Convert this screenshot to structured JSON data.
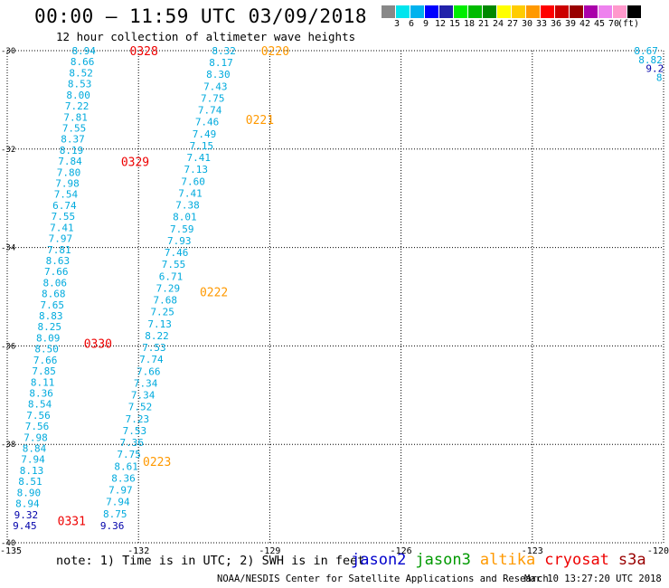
{
  "header": {
    "title": "00:00 – 11:59 UTC 03/09/2018",
    "subtitle": "12 hour collection of altimeter wave heights"
  },
  "colorbar": {
    "colors": [
      "#888888",
      "#00e5ee",
      "#00b2ee",
      "#0000ff",
      "#2222aa",
      "#00ee00",
      "#00bb00",
      "#008800",
      "#ffff00",
      "#ffcc00",
      "#ff9900",
      "#ff0000",
      "#cc0000",
      "#990000",
      "#aa00aa",
      "#ee82ee",
      "#ff99cc",
      "#000000"
    ],
    "labels": [
      "3",
      "6",
      "9",
      "12",
      "15",
      "18",
      "21",
      "24",
      "27",
      "30",
      "33",
      "36",
      "39",
      "42",
      "45",
      "70",
      "(ft)"
    ]
  },
  "map": {
    "lon_range": [
      -135,
      -120
    ],
    "lat_range": [
      -40,
      -30
    ],
    "lon_ticks": [
      -135,
      -132,
      -129,
      -126,
      -123,
      -120
    ],
    "lat_ticks": [
      -30,
      -32,
      -34,
      -36,
      -38,
      -40
    ],
    "colors": {
      "cyan": "#00aadd",
      "navy": "#0000aa",
      "red": "#ee0000",
      "orange": "#ff9900"
    },
    "tracks": [
      {
        "name": "track-1",
        "lon_start": -133.25,
        "lat_start": -30.0,
        "lon_end": -134.6,
        "lat_end": -39.65,
        "values": [
          "8.94",
          "8.66",
          "8.52",
          "8.53",
          "8.00",
          "7.22",
          "7.81",
          "7.55",
          "8.37",
          "8.19",
          "7.84",
          "7.80",
          "7.98",
          "7.54",
          "6.74",
          "7.55",
          "7.41",
          "7.97",
          "7.81",
          "8.63",
          "7.66",
          "8.06",
          "8.68",
          "7.65",
          "8.83",
          "8.25",
          "8.09",
          "8.50",
          "7.66",
          "7.85",
          "8.11",
          "8.36",
          "8.54",
          "7.56",
          "7.56",
          "7.98",
          "8.84",
          "7.94",
          "8.13",
          "8.51",
          "8.90",
          "8.94",
          "9.32",
          "9.45"
        ],
        "navy_values": [
          "9.32",
          "9.45"
        ]
      },
      {
        "name": "track-2",
        "lon_start": -130.05,
        "lat_start": -30.0,
        "lon_end": -132.6,
        "lat_end": -39.65,
        "values": [
          "8.32",
          "8.17",
          "8.30",
          "7.43",
          "7.75",
          "7.74",
          "7.46",
          "7.49",
          "7.15",
          "7.41",
          "7.13",
          "7.60",
          "7.41",
          "7.38",
          "8.01",
          "7.59",
          "7.93",
          "7.46",
          "7.55",
          "6.71",
          "7.29",
          "7.68",
          "7.25",
          "7.13",
          "8.22",
          "7.53",
          "7.74",
          "7.66",
          "7.34",
          "7.34",
          "7.52",
          "7.23",
          "7.53",
          "7.36",
          "7.75",
          "8.61",
          "8.36",
          "7.97",
          "7.94",
          "8.75",
          "9.36"
        ],
        "navy_values": [
          "9.36"
        ]
      },
      {
        "name": "track-3",
        "lon_start": -120.4,
        "lat_start": -30.0,
        "lon_end": -120.1,
        "lat_end": -30.6,
        "values": [
          "8.67",
          "8.82",
          "9.2",
          "8"
        ],
        "navy_values": [
          "9.2"
        ]
      }
    ],
    "time_labels": [
      {
        "text": "0328",
        "lon": -132.2,
        "lat": -30.0,
        "color": "red"
      },
      {
        "text": "0329",
        "lon": -132.4,
        "lat": -32.25,
        "color": "red"
      },
      {
        "text": "0330",
        "lon": -133.25,
        "lat": -35.95,
        "color": "red"
      },
      {
        "text": "0331",
        "lon": -133.85,
        "lat": -39.55,
        "color": "red"
      },
      {
        "text": "0220",
        "lon": -129.2,
        "lat": -30.0,
        "color": "orange"
      },
      {
        "text": "0221",
        "lon": -129.55,
        "lat": -31.4,
        "color": "orange"
      },
      {
        "text": "0222",
        "lon": -130.6,
        "lat": -34.9,
        "color": "orange"
      },
      {
        "text": "0223",
        "lon": -131.9,
        "lat": -38.35,
        "color": "orange"
      }
    ]
  },
  "footer": {
    "note": "note:  1) Time is in UTC;  2) SWH is in feet",
    "satellites": [
      {
        "name": "jason2",
        "color": "#0000cc"
      },
      {
        "name": "jason3",
        "color": "#009900"
      },
      {
        "name": "altika",
        "color": "#ff9900"
      },
      {
        "name": "cryosat",
        "color": "#ee0000"
      },
      {
        "name": "s3a",
        "color": "#990000"
      }
    ],
    "credit": "NOAA/NESDIS Center for Satellite Applications and Research",
    "timestamp": "Mar 10 13:27:20 UTC 2018"
  }
}
